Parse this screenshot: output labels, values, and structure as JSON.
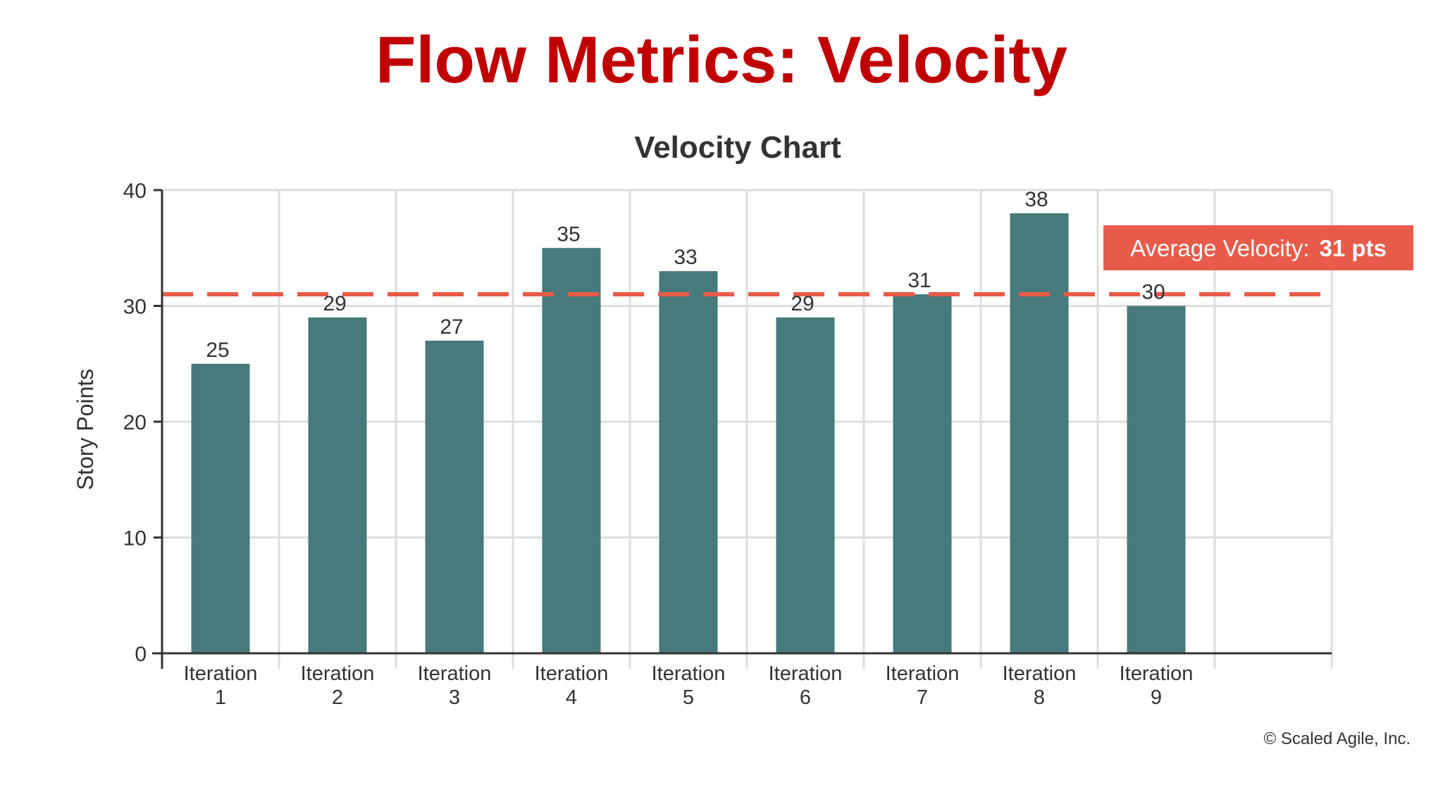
{
  "page": {
    "title": "Flow Metrics: Velocity",
    "copyright": "© Scaled Agile, Inc."
  },
  "colors": {
    "title": "#c00000",
    "bar": "#467a7c",
    "average_line": "#e85b4a",
    "average_label_bg": "#e85b4a",
    "grid": "#dddddd",
    "axis": "#333333",
    "text": "#333333"
  },
  "chart_data": {
    "type": "bar",
    "title": "Velocity Chart",
    "xlabel": "",
    "ylabel": "Story Points",
    "categories": [
      [
        "Iteration",
        "1"
      ],
      [
        "Iteration",
        "2"
      ],
      [
        "Iteration",
        "3"
      ],
      [
        "Iteration",
        "4"
      ],
      [
        "Iteration",
        "5"
      ],
      [
        "Iteration",
        "6"
      ],
      [
        "Iteration",
        "7"
      ],
      [
        "Iteration",
        "8"
      ],
      [
        "Iteration",
        "9"
      ]
    ],
    "values": [
      25,
      29,
      27,
      35,
      33,
      29,
      31,
      38,
      30
    ],
    "ylim": [
      0,
      40
    ],
    "yticks": [
      0,
      10,
      20,
      30,
      40
    ],
    "grid": true,
    "average": {
      "value": 31,
      "label_prefix": "Average Velocity:",
      "label_value": "31 pts"
    }
  }
}
